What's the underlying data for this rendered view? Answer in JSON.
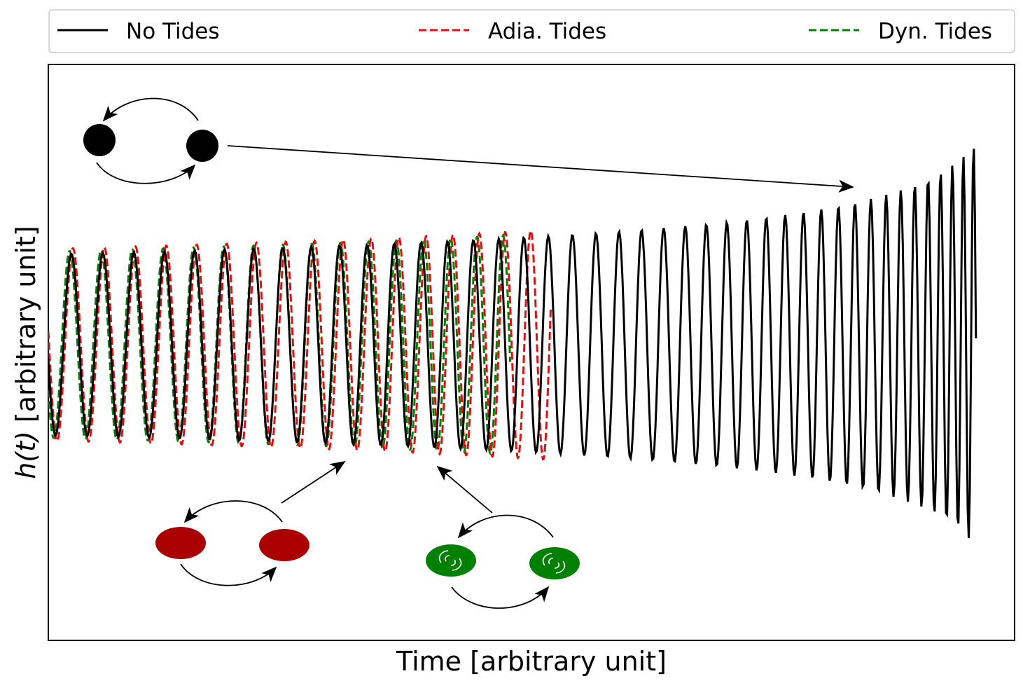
{
  "chart_data": {
    "type": "line",
    "title": "",
    "xlabel": "Time [arbitrary unit]",
    "ylabel": "h(t) [arbitrary unit]",
    "ylabel_parts": {
      "italic": "h(t)",
      "rest": "[arbitrary unit]"
    },
    "xlim": [
      0,
      1
    ],
    "ylim": [
      -1.6,
      1.6
    ],
    "grid": false,
    "axis_ticks": "none",
    "legend": {
      "placement": "above-plot"
    },
    "series": [
      {
        "name": "No Tides",
        "color": "#000000",
        "dash": "solid"
      },
      {
        "name": "Adia. Tides",
        "color": "#e01010",
        "dash": "dashed"
      },
      {
        "name": "Dyn. Tides",
        "color": "#008000",
        "dash": "dashed"
      }
    ],
    "annotations": [
      {
        "kind": "binary-icon",
        "body_color": "#000000",
        "points_to": "No Tides"
      },
      {
        "kind": "binary-icon",
        "body_color": "#aa0000",
        "points_to": "Adia. Tides"
      },
      {
        "kind": "binary-icon",
        "body_color": "#008000",
        "points_to": "Dyn. Tides"
      }
    ]
  }
}
